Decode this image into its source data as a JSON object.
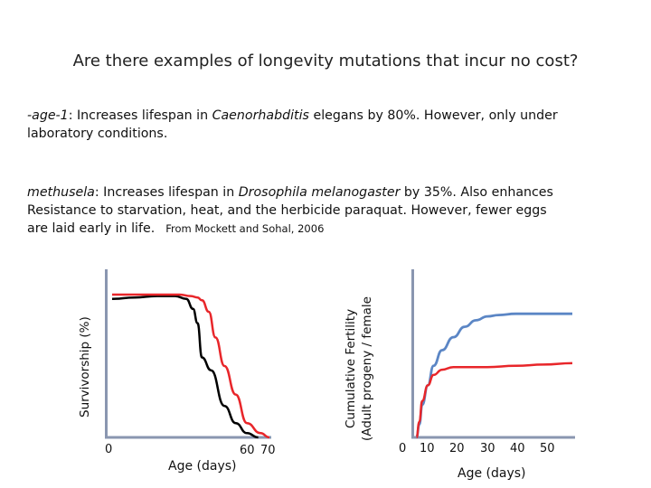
{
  "slide": {
    "title": "Are there examples of longevity mutations that incur no cost?",
    "para1": {
      "gene": "-age-1",
      "text_a": ": Increases lifespan in ",
      "species_italic": "Caenorhabditis",
      "text_b": " elegans by 80%. However, only under",
      "line2": "laboratory conditions."
    },
    "para2": {
      "gene": "methusela",
      "text_a": ": Increases lifespan in ",
      "species": "Drosophila melanogaster",
      "text_b": " by 35%. Also enhances",
      "line2": "Resistance to starvation, heat, and the herbicide paraquat. However, fewer eggs",
      "line3": "are laid early in life.",
      "citation": "From Mockett and Sohal, 2006"
    }
  },
  "chart_data": [
    {
      "type": "line",
      "ylabel": "Survivorship (%)",
      "xlabel": "Age (days)",
      "x_ticks": [
        "0",
        "60",
        "70"
      ],
      "series": [
        {
          "color": "#000000",
          "x": [
            0,
            10,
            20,
            28,
            33,
            36,
            38,
            40,
            44,
            50,
            55,
            60,
            65
          ],
          "y": [
            97,
            98,
            99,
            99,
            97,
            90,
            80,
            56,
            47,
            22,
            10,
            3,
            0
          ]
        },
        {
          "color": "#e8262a",
          "x": [
            0,
            10,
            20,
            30,
            35,
            38,
            40,
            43,
            46,
            50,
            55,
            60,
            66,
            70
          ],
          "y": [
            100,
            100,
            100,
            100,
            99,
            98,
            96,
            88,
            70,
            50,
            30,
            10,
            3,
            0
          ]
        }
      ]
    },
    {
      "type": "line",
      "ylabel_line1": "Cumulative Fertility",
      "ylabel_line2": "(Adult progeny / female",
      "xlabel": "Age (days)",
      "x_ticks": [
        "0",
        "10",
        "20",
        "30",
        "40",
        "50"
      ],
      "series": [
        {
          "color": "#5b86c5",
          "x": [
            5,
            6,
            7,
            9,
            11,
            14,
            18,
            22,
            26,
            30,
            34,
            40,
            50,
            60
          ],
          "y": [
            0,
            10,
            25,
            40,
            55,
            67,
            77,
            85,
            90,
            93,
            94,
            95,
            95,
            95
          ]
        },
        {
          "color": "#e8262a",
          "x": [
            5,
            6,
            7,
            9,
            11,
            14,
            18,
            22,
            30,
            40,
            50,
            60
          ],
          "y": [
            0,
            12,
            28,
            40,
            48,
            52,
            54,
            54,
            54,
            55,
            56,
            57
          ]
        }
      ]
    }
  ]
}
